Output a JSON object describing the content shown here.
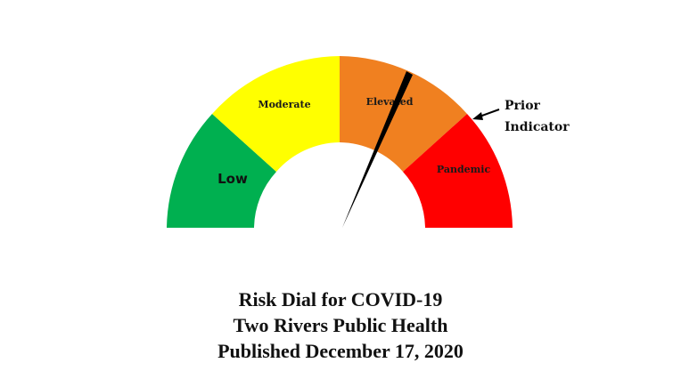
{
  "dial": {
    "zones": [
      {
        "name": "low",
        "label": "Low",
        "color": "#00b050"
      },
      {
        "name": "moderate",
        "label": "Moderate",
        "color": "#ffff00"
      },
      {
        "name": "elevated",
        "label": "Elevated",
        "color": "#f08020"
      },
      {
        "name": "pandemic",
        "label": "Pandemic",
        "color": "#ff0000"
      }
    ],
    "needle_color": "#000000",
    "prior_indicator_label": [
      "Prior",
      "Indicator"
    ]
  },
  "caption": {
    "line1": "Risk Dial for COVID-19",
    "line2": "Two Rivers Public Health",
    "line3": "Published December 17, 2020"
  }
}
